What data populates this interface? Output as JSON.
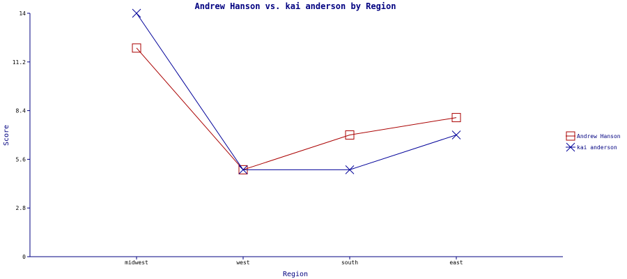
{
  "chart_data": {
    "type": "line",
    "title": "Andrew Hanson vs. kai anderson by Region",
    "xlabel": "Region",
    "ylabel": "Score",
    "categories": [
      "midwest",
      "west",
      "south",
      "east"
    ],
    "ylim": [
      0,
      14
    ],
    "yticks": [
      "0",
      "2.8",
      "5.6",
      "8.4",
      "11.2",
      "14"
    ],
    "grid": false,
    "legend_position": "right",
    "series": [
      {
        "name": "Andrew Hanson",
        "values": [
          12,
          5,
          7,
          8
        ],
        "color": "#aa0000",
        "marker": "square"
      },
      {
        "name": "kai anderson",
        "values": [
          14,
          5,
          5,
          7
        ],
        "color": "#000099",
        "marker": "x"
      }
    ]
  }
}
